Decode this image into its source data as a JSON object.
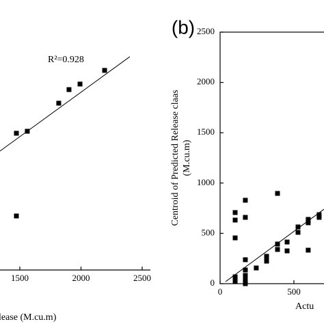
{
  "chart_data": [
    {
      "type": "scatter",
      "annotation": "R²=0.928",
      "x_label": "lease (M.cu.m)",
      "x": [
        1472,
        1561,
        1818,
        1902,
        1992,
        2193,
        1472
      ],
      "values": [
        1359,
        1379,
        1658,
        1793,
        1848,
        1984,
        537
      ],
      "fit_line": {
        "x": [
          1338,
          2399
        ],
        "y": [
          1182,
          2120
        ]
      },
      "color": "#000000",
      "xlim": [
        1338,
        2567
      ],
      "xticks": [
        1500,
        2000,
        2500
      ],
      "ylim": [
        0,
        2500
      ]
    },
    {
      "type": "scatter",
      "panel_label": "(b)",
      "x_label": "Actu",
      "y_label": [
        "Centroid of Predicted Release claas",
        "(M.cu.m)"
      ],
      "x": [
        102,
        102,
        102,
        102,
        102,
        171,
        171,
        171,
        171,
        171,
        171,
        171,
        245,
        315,
        315,
        389,
        389,
        389,
        454,
        454,
        528,
        528,
        597,
        597,
        597,
        671,
        671
      ],
      "values": [
        707,
        632,
        455,
        68,
        27,
        829,
        659,
        238,
        136,
        82,
        34,
        0,
        156,
        272,
        224,
        897,
        394,
        340,
        414,
        326,
        564,
        510,
        639,
        605,
        333,
        686,
        659
      ],
      "fit_line": {
        "x": [
          37,
          704
        ],
        "y": [
          20,
          740
        ]
      },
      "color": "#000000",
      "xlim": [
        0,
        704
      ],
      "xticks": [
        0,
        500
      ],
      "ylim": [
        0,
        2500
      ],
      "yticks": [
        0,
        500,
        1000,
        1500,
        2000,
        2500
      ]
    }
  ]
}
